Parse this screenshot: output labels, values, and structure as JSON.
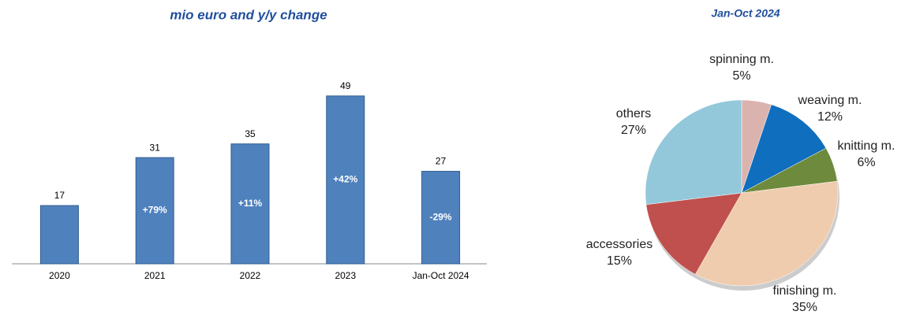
{
  "chart_data": [
    {
      "type": "bar",
      "title": "mio euro and y/y change",
      "categories": [
        "2020",
        "2021",
        "2022",
        "2023",
        "Jan-Oct 2024"
      ],
      "values": [
        17,
        31,
        35,
        49,
        27
      ],
      "annotations": [
        null,
        "+79%",
        "+11%",
        "+42%",
        "-29%"
      ],
      "color": "#4f81bd"
    },
    {
      "type": "pie",
      "title": "Jan-Oct 2024",
      "categories": [
        "spinning m.",
        "weaving m.",
        "knitting m.",
        "finishing m.",
        "accessories",
        "others"
      ],
      "values": [
        5,
        12,
        6,
        35,
        15,
        27
      ],
      "value_labels": [
        "5%",
        "12%",
        "6%",
        "35%",
        "15%",
        "27%"
      ],
      "colors": [
        "#dbb3ae",
        "#0f6ebe",
        "#6e8a3c",
        "#f0ccae",
        "#c0504d",
        "#93c8db"
      ]
    }
  ]
}
